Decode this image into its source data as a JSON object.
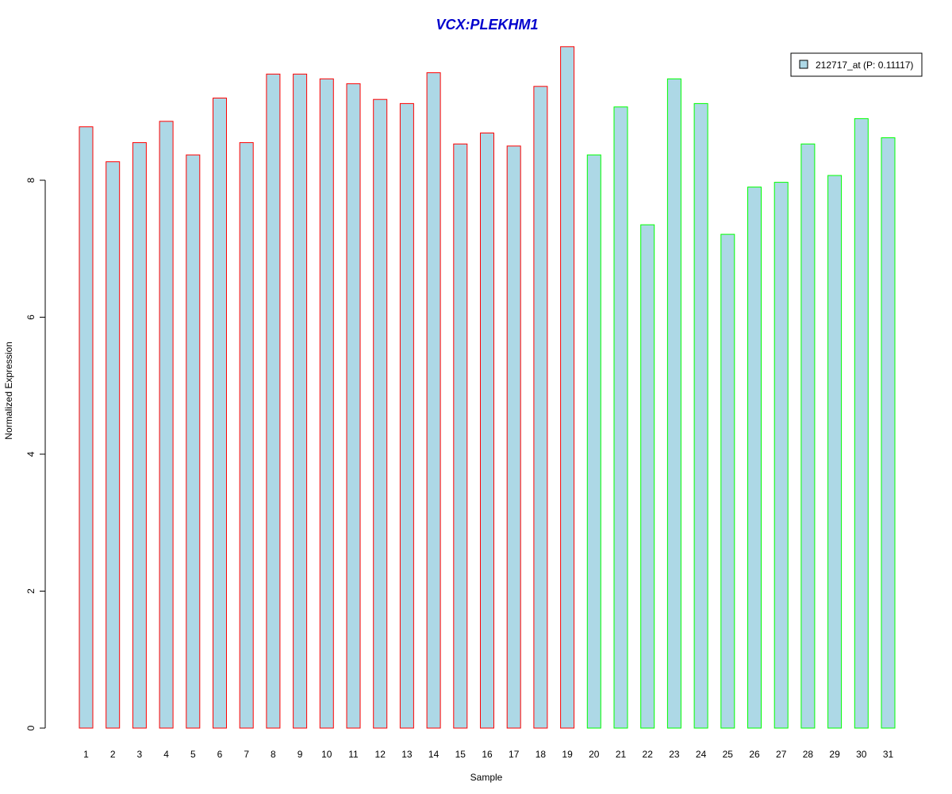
{
  "chart_data": {
    "type": "bar",
    "title": "VCX:PLEKHM1",
    "xlabel": "Sample",
    "ylabel": "Normalized Expression",
    "categories": [
      "1",
      "2",
      "3",
      "4",
      "5",
      "6",
      "7",
      "8",
      "9",
      "10",
      "11",
      "12",
      "13",
      "14",
      "15",
      "16",
      "17",
      "18",
      "19",
      "20",
      "21",
      "22",
      "23",
      "24",
      "25",
      "26",
      "27",
      "28",
      "29",
      "30",
      "31"
    ],
    "series": [
      {
        "name": "212717_at (P: 0.11117)",
        "values": [
          8.78,
          8.27,
          8.55,
          8.86,
          8.37,
          9.2,
          8.55,
          9.55,
          9.55,
          9.48,
          9.41,
          9.18,
          9.12,
          9.57,
          8.53,
          8.69,
          8.5,
          9.37,
          9.95,
          8.37,
          9.07,
          7.35,
          9.48,
          9.12,
          7.21,
          7.9,
          7.97,
          8.53,
          8.07,
          8.9,
          8.62
        ]
      }
    ],
    "groups": [
      1,
      1,
      1,
      1,
      1,
      1,
      1,
      1,
      1,
      1,
      1,
      1,
      1,
      1,
      1,
      1,
      1,
      1,
      1,
      2,
      2,
      2,
      2,
      2,
      2,
      2,
      2,
      2,
      2,
      2,
      2
    ],
    "yticks": [
      "0",
      "2",
      "4",
      "6",
      "8"
    ],
    "ylim": [
      0,
      10
    ],
    "grid": false,
    "legend_position": "top-right",
    "colors": {
      "bar_fill": "#add8e6",
      "group1_border": "#ff0000",
      "group2_border": "#00ff00",
      "title": "#0000cd"
    }
  }
}
